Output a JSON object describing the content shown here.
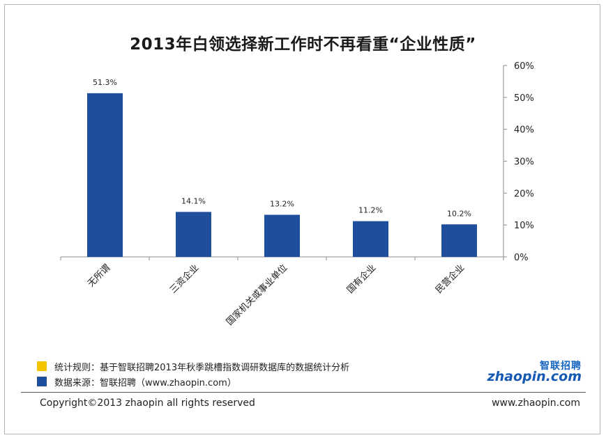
{
  "chart_data": {
    "type": "bar",
    "title": "2013年白领选择新工作时不再看重“企业性质”",
    "categories": [
      "无所谓",
      "三资企业",
      "国家机关或事业单位",
      "国有企业",
      "民营企业"
    ],
    "values": [
      51.3,
      14.1,
      13.2,
      11.2,
      10.2
    ],
    "data_labels": [
      "51.3%",
      "14.1%",
      "13.2%",
      "11.2%",
      "10.2%"
    ],
    "yaxis_side": "right",
    "ylim": [
      0,
      60
    ],
    "yticks": [
      0,
      10,
      20,
      30,
      40,
      50,
      60
    ],
    "ytick_labels": [
      "0%",
      "10%",
      "20%",
      "30%",
      "40%",
      "50%",
      "60%"
    ],
    "grid": false,
    "bar_color": "#1f4e9d"
  },
  "footnotes": [
    {
      "text": "统计规则：基于智联招聘2013年秋季跳槽指数调研数据库的数据统计分析",
      "color": "#f5c400"
    },
    {
      "text": "数据来源：智联招聘（www.zhaopin.com）",
      "color": "#1f4e9d"
    }
  ],
  "logo": {
    "cn": "智联招聘",
    "en": "zhaopin.com"
  },
  "footer": {
    "copyright": "Copyright©2013 zhaopin all rights reserved",
    "site": "www.zhaopin.com"
  }
}
